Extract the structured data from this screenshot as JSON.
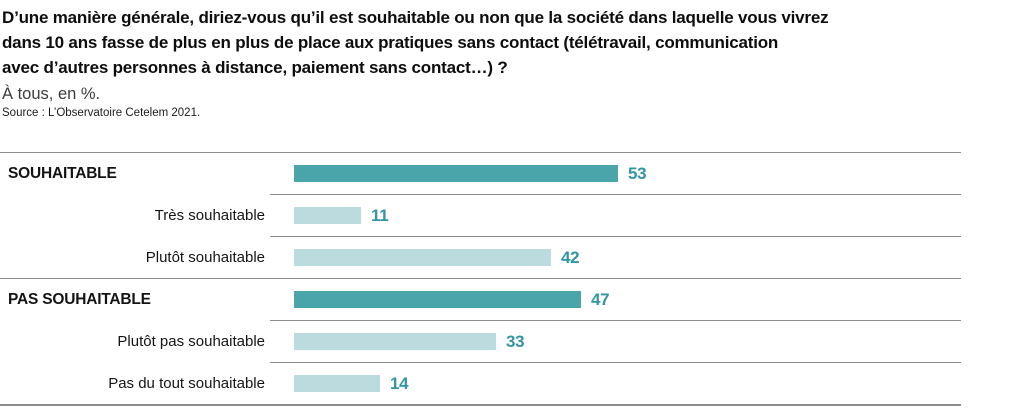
{
  "header": {
    "title_lines": [
      "D’une manière générale, diriez-vous qu’il est souhaitable ou non que la société dans laquelle vous vivrez",
      "dans 10 ans fasse de plus en plus de place aux pratiques sans contact (télétravail, communication",
      "avec d’autres personnes à distance, paiement sans contact…) ?"
    ],
    "subtitle": "À tous, en %.",
    "source": "Source : L’Observatoire Cetelem 2021."
  },
  "chart_data": {
    "type": "bar",
    "orientation": "horizontal",
    "title": "D’une manière générale, diriez-vous qu’il est souhaitable ou non que la société dans laquelle vous vivrez dans 10 ans fasse de plus en plus de place aux pratiques sans contact (télétravail, communication avec d’autres personnes à distance, paiement sans contact…) ?",
    "subtitle": "À tous, en %.",
    "unit": "%",
    "xlim": [
      0,
      60
    ],
    "grid": false,
    "legend": false,
    "categories": [
      "SOUHAITABLE",
      "Très souhaitable",
      "Plutôt souhaitable",
      "PAS SOUHAITABLE",
      "Plutôt pas souhaitable",
      "Pas du tout souhaitable"
    ],
    "values": [
      53,
      11,
      42,
      47,
      33,
      14
    ],
    "rows": [
      {
        "label": "SOUHAITABLE",
        "value": 53,
        "emphasis": true
      },
      {
        "label": "Très souhaitable",
        "value": 11,
        "emphasis": false
      },
      {
        "label": "Plutôt souhaitable",
        "value": 42,
        "emphasis": false
      },
      {
        "label": "PAS SOUHAITABLE",
        "value": 47,
        "emphasis": true
      },
      {
        "label": "Plutôt pas souhaitable",
        "value": 33,
        "emphasis": false
      },
      {
        "label": "Pas du tout souhaitable",
        "value": 14,
        "emphasis": false
      }
    ],
    "palette": {
      "bar_dark": "#4aa5aa",
      "bar_light": "#bcdbdf",
      "value_text": "#3295a6",
      "rule": "#8c8c8c"
    }
  }
}
